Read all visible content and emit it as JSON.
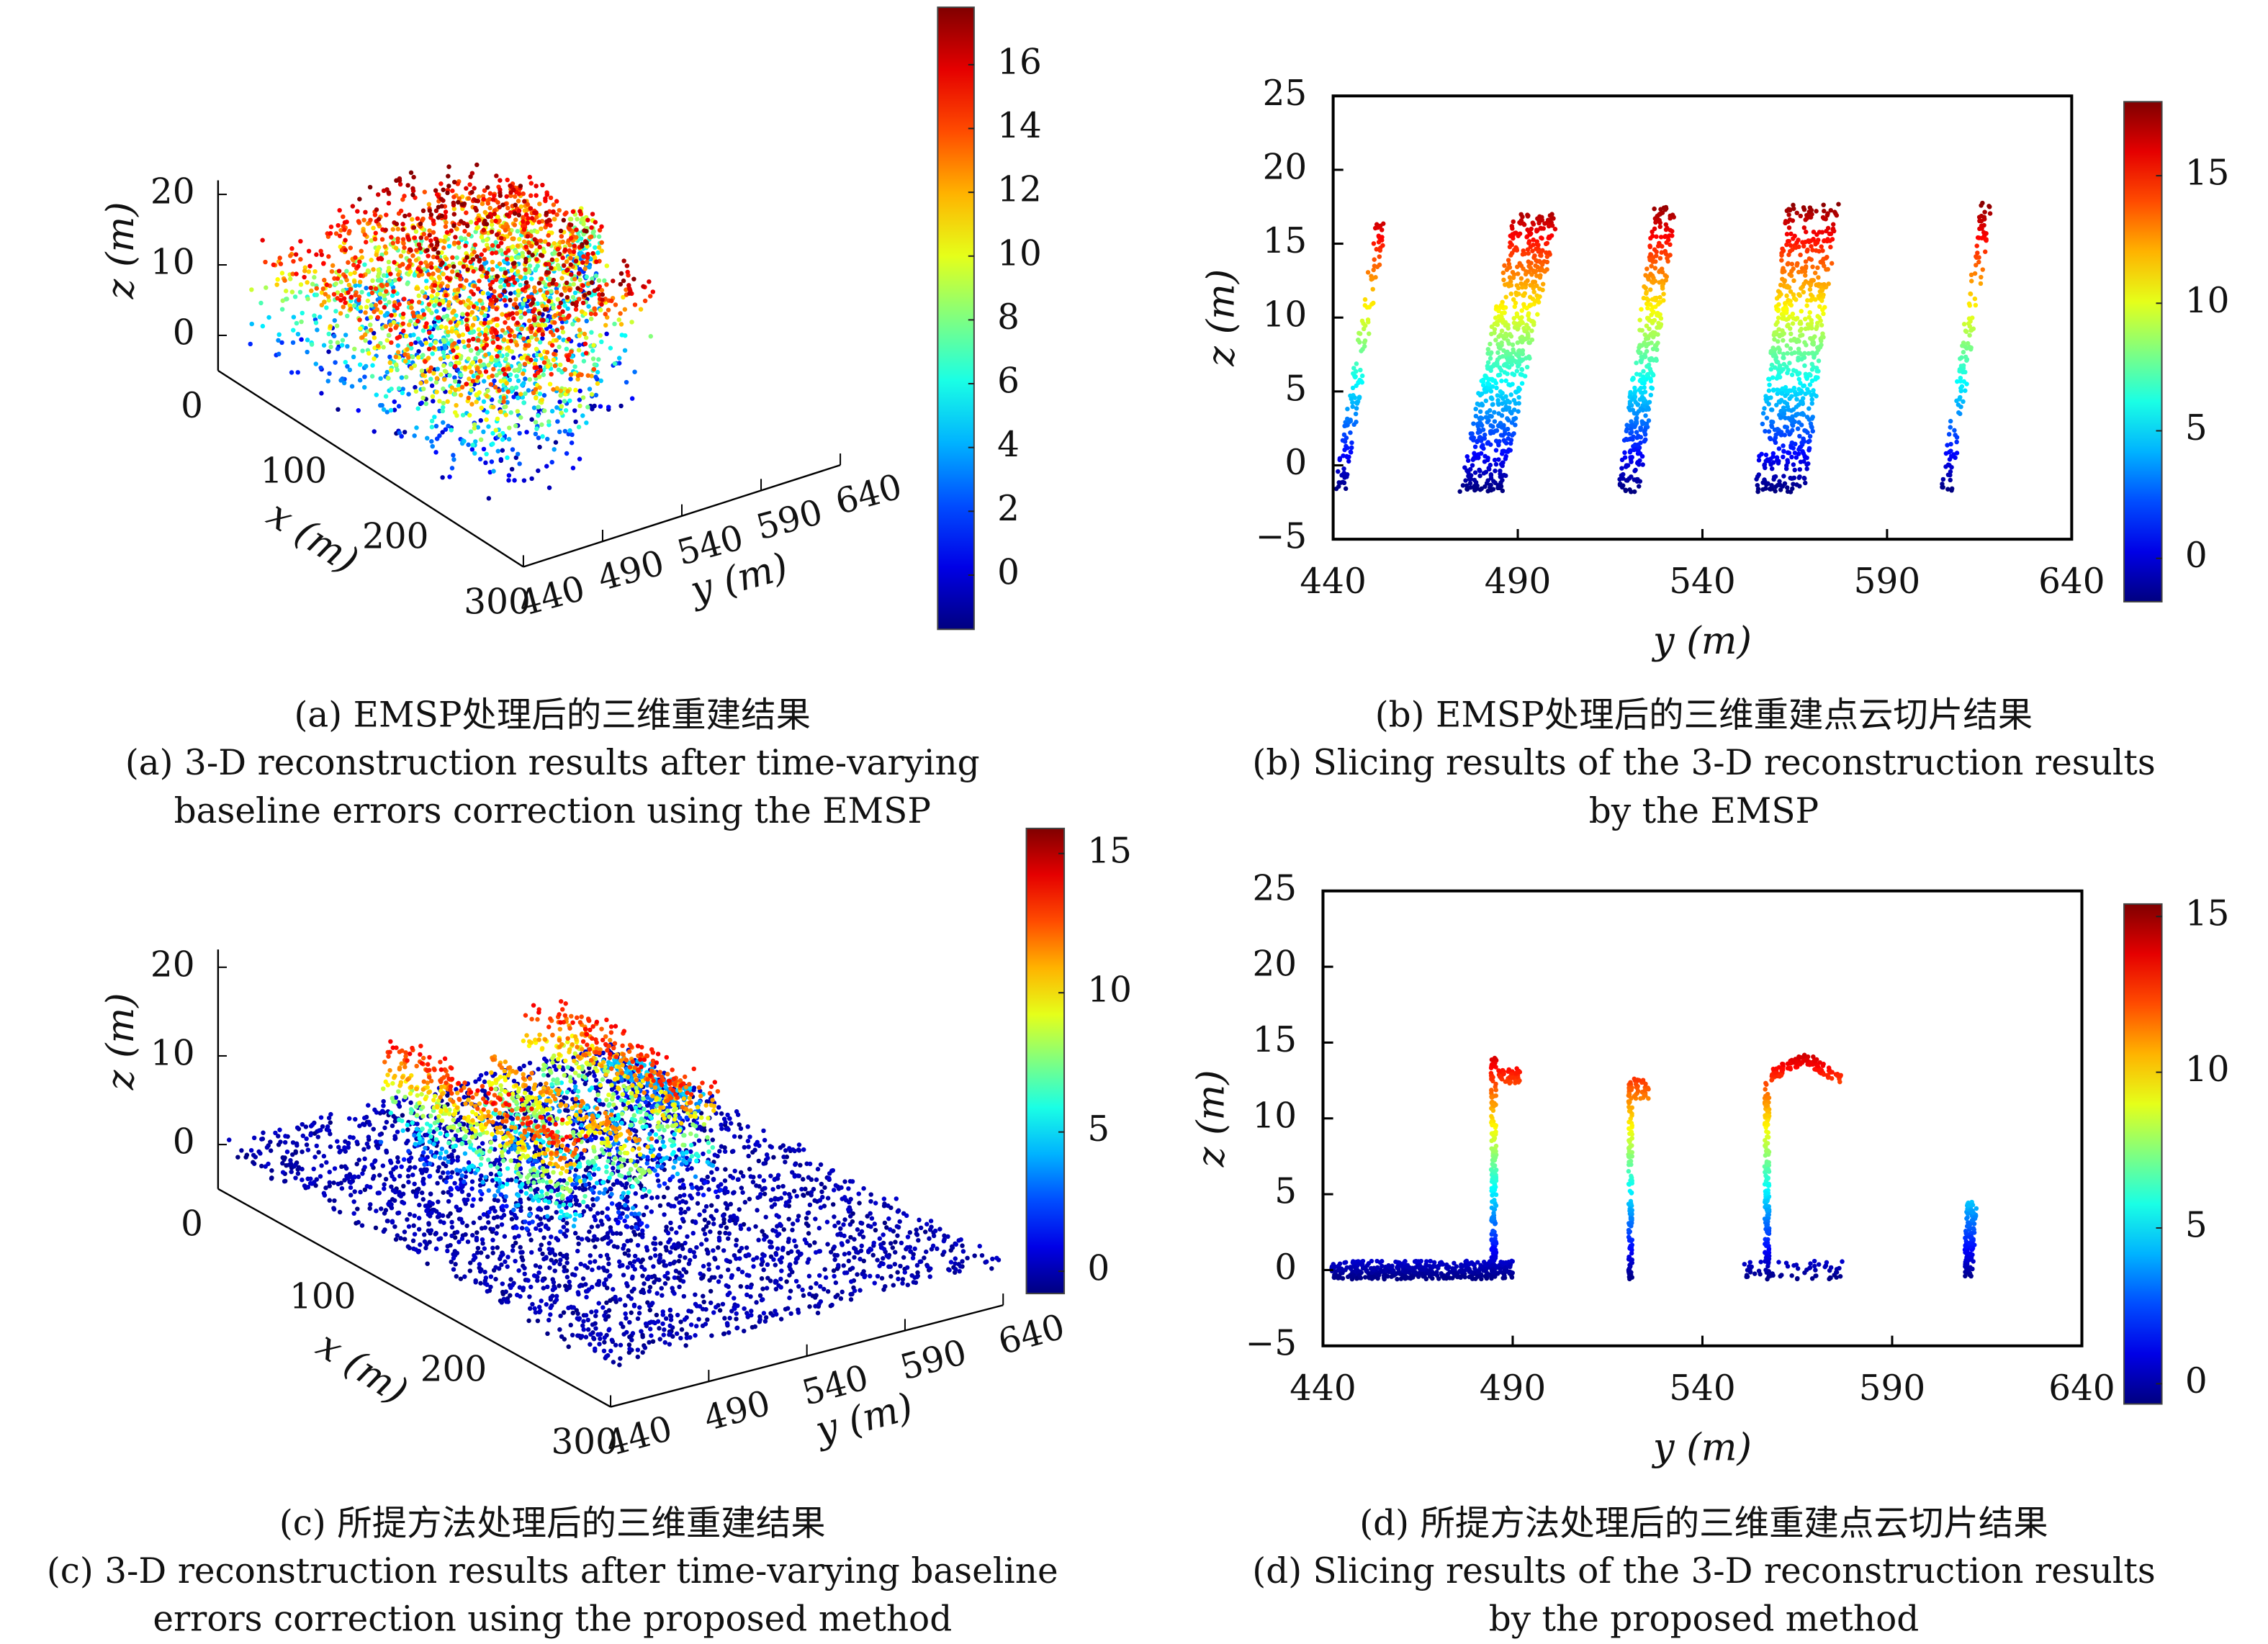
{
  "colors": {
    "colormap": "jet",
    "axis": "#000000"
  },
  "captions": {
    "a": {
      "cn": "(a) EMSP处理后的三维重建结果",
      "en1": "(a) 3-D reconstruction results after time-varying",
      "en2": "baseline errors correction using the EMSP"
    },
    "b": {
      "cn": "(b) EMSP处理后的三维重建点云切片结果",
      "en1": "(b) Slicing results of the 3-D reconstruction results",
      "en2": "by the EMSP"
    },
    "c": {
      "cn": "(c) 所提方法处理后的三维重建结果",
      "en1": "(c) 3-D reconstruction results after time-varying baseline",
      "en2": "errors correction using the proposed method"
    },
    "d": {
      "cn": "(d) 所提方法处理后的三维重建点云切片结果",
      "en1": "(d) Slicing results of the 3-D reconstruction results",
      "en2": "by the proposed method"
    }
  },
  "chart_data": [
    {
      "id": "a",
      "type": "scatter3d",
      "xlabel": "x (m)",
      "ylabel": "y (m)",
      "zlabel": "z (m)",
      "xticks": [
        "0",
        "100",
        "200",
        "300"
      ],
      "yticks": [
        "440",
        "490",
        "540",
        "590",
        "640"
      ],
      "zticks": [
        "0",
        "10",
        "20"
      ],
      "xlim": [
        0,
        300
      ],
      "ylim": [
        440,
        640
      ],
      "zlim": [
        -5,
        20
      ],
      "colorbar": {
        "ticks": [
          "0",
          "2",
          "4",
          "6",
          "8",
          "10",
          "12",
          "14",
          "16"
        ],
        "range": [
          -1.7,
          17.8
        ]
      },
      "clusters": [
        {
          "x": [
            30,
            260
          ],
          "y": [
            440,
            520
          ],
          "z": [
            -2,
            16
          ],
          "n": 1100
        },
        {
          "x": [
            20,
            210
          ],
          "y": [
            500,
            585
          ],
          "z": [
            -2,
            18
          ],
          "n": 1200
        },
        {
          "x": [
            40,
            130
          ],
          "y": [
            570,
            605
          ],
          "z": [
            -2,
            16
          ],
          "n": 400
        },
        {
          "x": [
            60,
            80
          ],
          "y": [
            622,
            630
          ],
          "z": [
            -2,
            10
          ],
          "n": 80
        }
      ]
    },
    {
      "id": "b",
      "type": "scatter",
      "xlabel": "y (m)",
      "ylabel": "z (m)",
      "xticks": [
        "440",
        "490",
        "540",
        "590",
        "640"
      ],
      "yticks": [
        "−5",
        "0",
        "5",
        "10",
        "15",
        "20",
        "25"
      ],
      "xlim": [
        440,
        640
      ],
      "ylim": [
        -5,
        25
      ],
      "colorbar": {
        "ticks": [
          "0",
          "5",
          "10",
          "15"
        ],
        "range": [
          -1.7,
          17.9
        ]
      },
      "clusters": [
        {
          "from": [
            442,
            -1.6
          ],
          "to": [
            453,
            16.5
          ],
          "spread": 1.5,
          "n": 130
        },
        {
          "from": [
            480,
            -1.8
          ],
          "to": [
            495,
            17
          ],
          "spread": 6,
          "n": 650
        },
        {
          "from": [
            520,
            -1.8
          ],
          "to": [
            530,
            17.5
          ],
          "spread": 3,
          "n": 380
        },
        {
          "from": [
            561,
            -1.8
          ],
          "to": [
            570,
            17.7
          ],
          "spread": 7,
          "n": 650
        },
        {
          "from": [
            606,
            -1.8
          ],
          "to": [
            617,
            17.8
          ],
          "spread": 1.5,
          "n": 130
        }
      ]
    },
    {
      "id": "c",
      "type": "scatter3d",
      "xlabel": "x (m)",
      "ylabel": "y (m)",
      "zlabel": "z (m)",
      "xticks": [
        "0",
        "100",
        "200",
        "300"
      ],
      "yticks": [
        "440",
        "490",
        "540",
        "590",
        "640"
      ],
      "zticks": [
        "0",
        "10",
        "20"
      ],
      "xlim": [
        0,
        300
      ],
      "ylim": [
        440,
        640
      ],
      "zlim": [
        -5,
        20
      ],
      "colorbar": {
        "ticks": [
          "0",
          "5",
          "10",
          "15"
        ],
        "range": [
          -0.8,
          15.9
        ]
      },
      "clusters": [
        {
          "x": [
            0,
            300
          ],
          "y": [
            440,
            640
          ],
          "z": [
            -1,
            0.5
          ],
          "n": 2600
        },
        {
          "x": [
            60,
            200
          ],
          "y": [
            482,
            498
          ],
          "z": [
            0,
            14
          ],
          "n": 600
        },
        {
          "x": [
            80,
            200
          ],
          "y": [
            520,
            530
          ],
          "z": [
            0,
            12
          ],
          "n": 400
        },
        {
          "x": [
            60,
            180
          ],
          "y": [
            555,
            578
          ],
          "z": [
            0,
            14
          ],
          "n": 600
        },
        {
          "x": [
            50,
            110
          ],
          "y": [
            600,
            615
          ],
          "z": [
            0,
            5
          ],
          "n": 200
        }
      ]
    },
    {
      "id": "d",
      "type": "scatter",
      "xlabel": "y (m)",
      "ylabel": "z (m)",
      "xticks": [
        "440",
        "490",
        "540",
        "590",
        "640"
      ],
      "yticks": [
        "−5",
        "0",
        "5",
        "10",
        "15",
        "20",
        "25"
      ],
      "xlim": [
        440,
        640
      ],
      "ylim": [
        -5,
        25
      ],
      "colorbar": {
        "ticks": [
          "0",
          "5",
          "10",
          "15"
        ],
        "range": [
          -0.65,
          15.4
        ]
      },
      "clusters": [
        {
          "from": [
            442,
            0
          ],
          "to": [
            490,
            0
          ],
          "spread": 0.6,
          "n": 420,
          "axis": "z"
        },
        {
          "from": [
            485,
            -0.5
          ],
          "to": [
            485,
            14
          ],
          "spread": 0.7,
          "n": 180
        },
        {
          "from": [
            486,
            12.8
          ],
          "to": [
            492,
            12.8
          ],
          "spread": 0.5,
          "n": 50,
          "axis": "z"
        },
        {
          "from": [
            521,
            -0.6
          ],
          "to": [
            521,
            12.5
          ],
          "spread": 0.5,
          "n": 130
        },
        {
          "from": [
            522,
            12
          ],
          "to": [
            526,
            12
          ],
          "spread": 0.7,
          "n": 30,
          "axis": "z"
        },
        {
          "from": [
            557,
            -0.8
          ],
          "to": [
            557,
            12.5
          ],
          "spread": 0.6,
          "n": 150
        },
        {
          "from": [
            558,
            12.8
          ],
          "to": [
            567,
            14
          ],
          "spread": 0.4,
          "n": 60,
          "axis": "z"
        },
        {
          "from": [
            567,
            14
          ],
          "to": [
            577,
            12.5
          ],
          "spread": 0.4,
          "n": 60,
          "axis": "z"
        },
        {
          "from": [
            551,
            0
          ],
          "to": [
            578,
            0
          ],
          "spread": 0.6,
          "n": 60,
          "axis": "z"
        },
        {
          "from": [
            610,
            -0.5
          ],
          "to": [
            611,
            4.5
          ],
          "spread": 1.3,
          "n": 120
        }
      ]
    }
  ]
}
